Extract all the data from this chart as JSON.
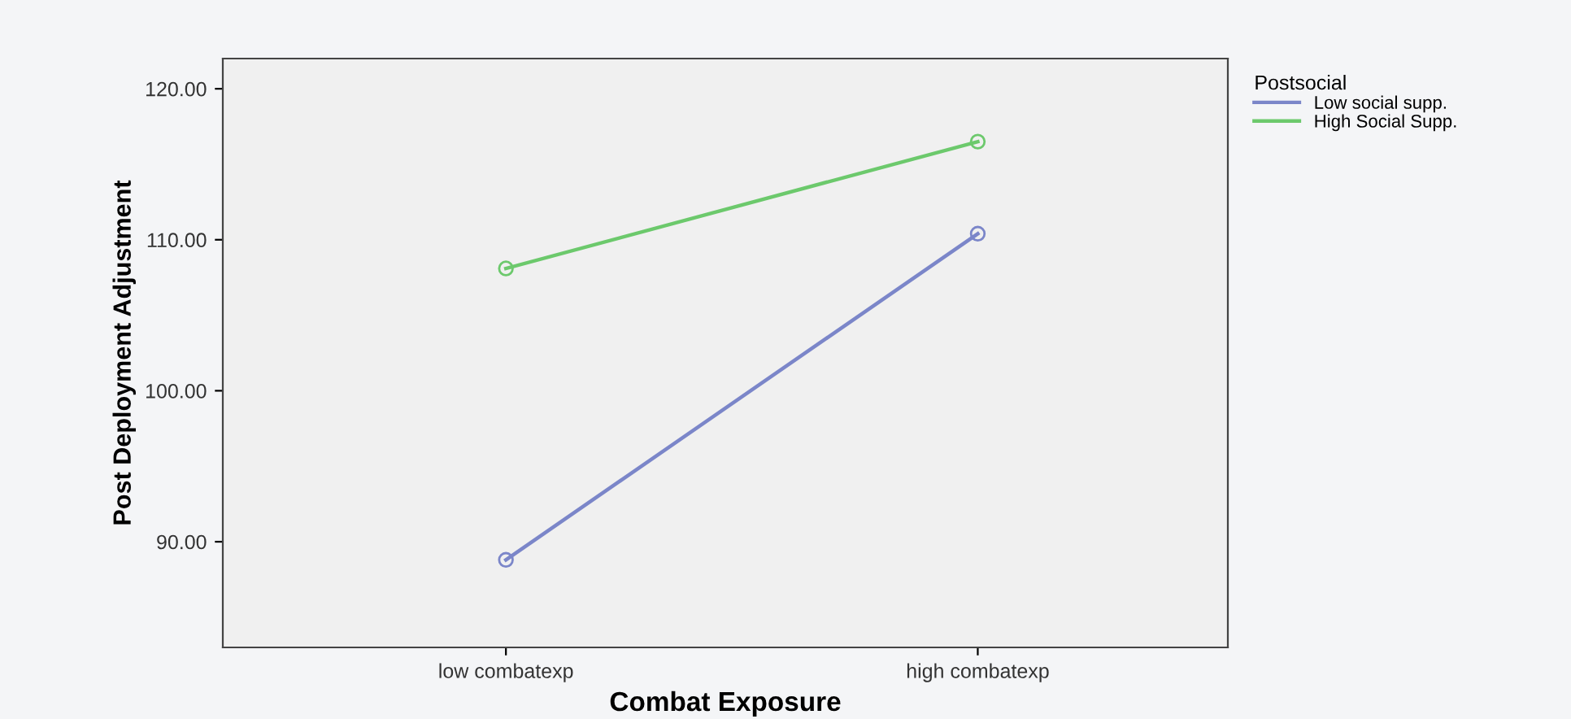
{
  "chart_data": {
    "type": "line",
    "xlabel": "Combat Exposure",
    "ylabel": "Post Deployment Adjustment",
    "legend_title": "Postsocial",
    "categories": [
      "low combatexp",
      "high combatexp"
    ],
    "series": [
      {
        "name": "Low social supp.",
        "color": "#7b86c9",
        "values": [
          88.8,
          110.4
        ]
      },
      {
        "name": "High Social Supp.",
        "color": "#6cc96c",
        "values": [
          108.1,
          116.5
        ]
      }
    ],
    "ylim": [
      83.0,
      122.0
    ],
    "yticks": [
      {
        "value": 90,
        "label": "90.00"
      },
      {
        "value": 100,
        "label": "100.00"
      },
      {
        "value": 110,
        "label": "110.00"
      },
      {
        "value": 120,
        "label": "120.00"
      }
    ],
    "marker": "circle",
    "line_style": "solid",
    "grid": false,
    "legend": "top right"
  }
}
